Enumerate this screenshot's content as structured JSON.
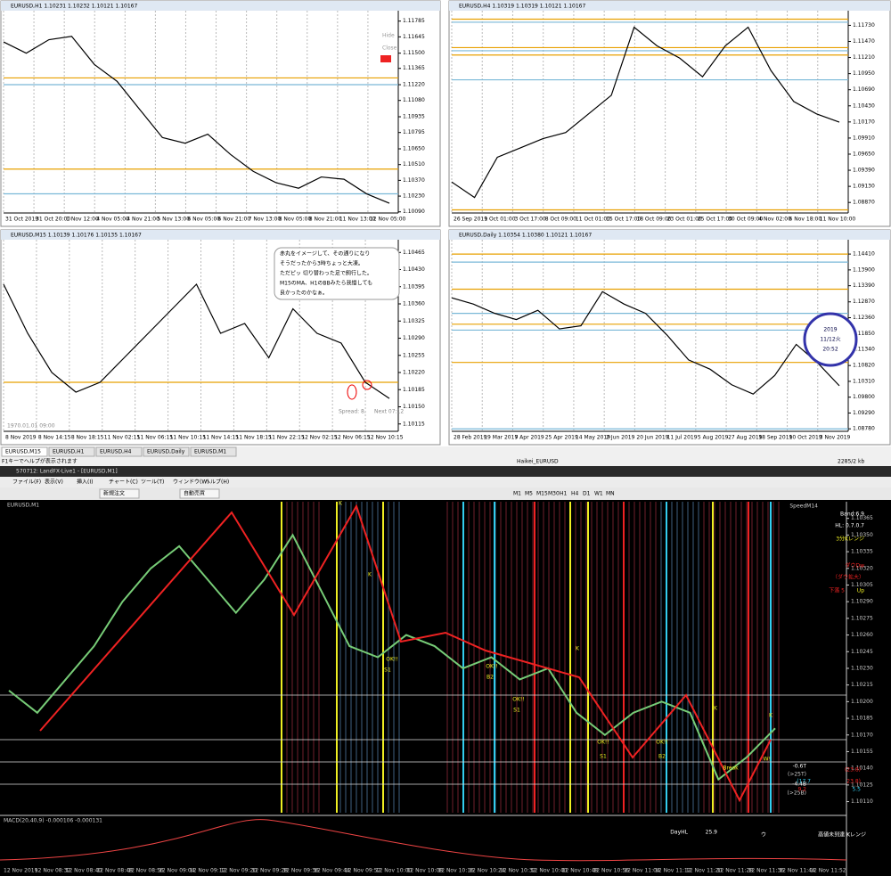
{
  "panels": [
    {
      "title": "EURUSD,H1 1.10231 1.10232 1.10121 1.10167",
      "ylim": [
        1.1008,
        1.1183
      ],
      "yticks": [
        {
          "value": 1.11785,
          "label": "1.11785"
        },
        {
          "value": 1.11645,
          "label": "1.11645"
        },
        {
          "value": 1.115,
          "label": "1.11500"
        },
        {
          "value": 1.11365,
          "label": "1.11365"
        },
        {
          "value": 1.1122,
          "label": "1.11220"
        },
        {
          "value": 1.1108,
          "label": "1.11080"
        },
        {
          "value": 1.10935,
          "label": "1.10935"
        },
        {
          "value": 1.10795,
          "label": "1.10795"
        },
        {
          "value": 1.1065,
          "label": "1.10650"
        },
        {
          "value": 1.1051,
          "label": "1.10510"
        },
        {
          "value": 1.1037,
          "label": "1.10370"
        },
        {
          "value": 1.1023,
          "label": "1.10230"
        },
        {
          "value": 1.1009,
          "label": "1.10090"
        }
      ],
      "xlabels": [
        "31 Oct 2019",
        "31 Oct 20:00",
        "1 Nov 12:00",
        "4 Nov 05:00",
        "4 Nov 21:00",
        "5 Nov 13:00",
        "6 Nov 05:00",
        "6 Nov 21:00",
        "7 Nov 13:00",
        "8 Nov 05:00",
        "8 Nov 21:00",
        "11 Nov 13:00",
        "12 Nov 05:00"
      ],
      "close": [
        1.116,
        1.115,
        1.1162,
        1.1165,
        1.114,
        1.1125,
        1.11,
        1.1075,
        1.107,
        1.1078,
        1.106,
        1.1045,
        1.1035,
        1.103,
        1.104,
        1.1038,
        1.1025,
        1.10167
      ],
      "levels": [
        1.1128,
        1.1122,
        1.1047,
        1.1025
      ],
      "side": [
        "Hide",
        "Close",
        "ON"
      ]
    },
    {
      "title": "EURUSD,H4 1.10319 1.10319 1.10121 1.10167",
      "ylim": [
        1.087,
        1.1188
      ],
      "yticks": [
        {
          "value": 1.1173,
          "label": "1.11730"
        },
        {
          "value": 1.1147,
          "label": "1.11470"
        },
        {
          "value": 1.1121,
          "label": "1.11210"
        },
        {
          "value": 1.1095,
          "label": "1.10950"
        },
        {
          "value": 1.1069,
          "label": "1.10690"
        },
        {
          "value": 1.1043,
          "label": "1.10430"
        },
        {
          "value": 1.1017,
          "label": "1.10170"
        },
        {
          "value": 1.0991,
          "label": "1.09910"
        },
        {
          "value": 1.0965,
          "label": "1.09650"
        },
        {
          "value": 1.0939,
          "label": "1.09390"
        },
        {
          "value": 1.0913,
          "label": "1.09130"
        },
        {
          "value": 1.0887,
          "label": "1.08870"
        }
      ],
      "xlabels": [
        "26 Sep 2019",
        "1 Oct 01:00",
        "3 Oct 17:00",
        "8 Oct 09:00",
        "11 Oct 01:00",
        "15 Oct 17:00",
        "18 Oct 09:00",
        "23 Oct 01:00",
        "25 Oct 17:00",
        "30 Oct 09:00",
        "4 Nov 02:00",
        "6 Nov 18:00",
        "11 Nov 10:00"
      ],
      "close": [
        1.092,
        1.0895,
        1.096,
        1.0975,
        1.099,
        1.1,
        1.103,
        1.106,
        1.117,
        1.114,
        1.112,
        1.109,
        1.114,
        1.117,
        1.11,
        1.105,
        1.103,
        1.10167
      ],
      "levels": [
        1.1183,
        1.1178,
        1.1137,
        1.1132,
        1.1125,
        1.1085,
        1.0875
      ],
      "side": []
    },
    {
      "title": "EURUSD,M15 1.10139 1.10176 1.10135 1.10167",
      "ylim": [
        1.101,
        1.1048
      ],
      "yticks": [
        {
          "value": 1.10465,
          "label": "1.10465"
        },
        {
          "value": 1.1043,
          "label": "1.10430"
        },
        {
          "value": 1.10395,
          "label": "1.10395"
        },
        {
          "value": 1.1036,
          "label": "1.10360"
        },
        {
          "value": 1.10325,
          "label": "1.10325"
        },
        {
          "value": 1.1029,
          "label": "1.10290"
        },
        {
          "value": 1.10255,
          "label": "1.10255"
        },
        {
          "value": 1.1022,
          "label": "1.10220"
        },
        {
          "value": 1.10185,
          "label": "1.10185"
        },
        {
          "value": 1.1015,
          "label": "1.10150"
        },
        {
          "value": 1.10115,
          "label": "1.10115"
        }
      ],
      "xlabels": [
        "8 Nov 2019",
        "8 Nov 14:15",
        "8 Nov 18:15",
        "11 Nov 02:15",
        "11 Nov 06:15",
        "11 Nov 10:15",
        "11 Nov 14:15",
        "11 Nov 18:15",
        "11 Nov 22:15",
        "12 Nov 02:15",
        "12 Nov 06:15",
        "12 Nov 10:15"
      ],
      "close": [
        1.104,
        1.103,
        1.1022,
        1.1018,
        1.102,
        1.1025,
        1.103,
        1.1035,
        1.104,
        1.103,
        1.1032,
        1.1025,
        1.1035,
        1.103,
        1.1028,
        1.102,
        1.10167
      ],
      "levels": [
        1.102
      ],
      "side": [
        "Hide",
        "Open"
      ]
    },
    {
      "title": "EURUSD,Daily 1.10354 1.10380 1.10121 1.10167",
      "ylim": [
        1.087,
        1.147
      ],
      "yticks": [
        {
          "value": 1.1441,
          "label": "1.14410"
        },
        {
          "value": 1.139,
          "label": "1.13900"
        },
        {
          "value": 1.1339,
          "label": "1.13390"
        },
        {
          "value": 1.1287,
          "label": "1.12870"
        },
        {
          "value": 1.1236,
          "label": "1.12360"
        },
        {
          "value": 1.1185,
          "label": "1.11850"
        },
        {
          "value": 1.1134,
          "label": "1.11340"
        },
        {
          "value": 1.1082,
          "label": "1.10820"
        },
        {
          "value": 1.1031,
          "label": "1.10310"
        },
        {
          "value": 1.098,
          "label": "1.09800"
        },
        {
          "value": 1.0929,
          "label": "1.09290"
        },
        {
          "value": 1.0878,
          "label": "1.08780"
        }
      ],
      "xlabels": [
        "28 Feb 2019",
        "19 Mar 2019",
        "7 Apr 2019",
        "25 Apr 2019",
        "14 May 2019",
        "2 Jun 2019",
        "20 Jun 2019",
        "11 Jul 2019",
        "5 Aug 2019",
        "27 Aug 2019",
        "18 Sep 2019",
        "10 Oct 2019",
        "3 Nov 2019"
      ],
      "close": [
        1.13,
        1.128,
        1.125,
        1.123,
        1.126,
        1.12,
        1.121,
        1.132,
        1.128,
        1.125,
        1.118,
        1.11,
        1.107,
        1.102,
        1.099,
        1.105,
        1.115,
        1.109,
        1.10167
      ],
      "levels": [
        1.1441,
        1.1415,
        1.1328,
        1.125,
        1.1215,
        1.1196,
        1.1092,
        1.0878
      ],
      "side": []
    }
  ],
  "m15_note": [
    "赤丸をイメージして、その通りになり",
    "そうだったから3時ちょっと大凍。",
    "ただピッ 切り替わった足で飼行した。",
    "M15のMA、H1のBBみたら我慢しても",
    "良かったのかなぁ。"
  ],
  "m15_extra": [
    "Spread: 8.",
    "Next 07:12",
    "1970.01.01 09:00"
  ],
  "clock": [
    "2019",
    "11/12火",
    "20:52"
  ],
  "tabs": [
    "EURUSD,M15",
    "EURUSD,H1",
    "EURUSD,H4",
    "EURUSD,Daily",
    "EURUSD,M1"
  ],
  "status": {
    "help": "F1キーでヘルプが表示されます",
    "profile": "Haikei_EURUSD",
    "traffic": "2285/2 kb"
  },
  "window_title": "570712: LandFX-Live1 - [EURUSD,M1]",
  "menu": [
    "ファイル(F)",
    "表示(V)",
    "挿入(I)",
    "チャート(C)",
    "ツール(T)",
    "ウィンドウ(W)",
    "ヘルプ(H)"
  ],
  "toolbar": [
    "新規注文",
    "自動売買"
  ],
  "periods": [
    "M1",
    "M5",
    "M15",
    "M30",
    "H1",
    "H4",
    "D1",
    "W1",
    "MN"
  ],
  "m1": {
    "title": "EURUSD,M1",
    "ylim": [
      1.101,
      1.1038
    ],
    "yticks": [
      {
        "value": 1.10365,
        "label": "1.10365"
      },
      {
        "value": 1.1035,
        "label": "1.10350"
      },
      {
        "value": 1.10335,
        "label": "1.10335"
      },
      {
        "value": 1.1032,
        "label": "1.10320"
      },
      {
        "value": 1.10305,
        "label": "1.10305"
      },
      {
        "value": 1.1029,
        "label": "1.10290"
      },
      {
        "value": 1.10275,
        "label": "1.10275"
      },
      {
        "value": 1.1026,
        "label": "1.10260"
      },
      {
        "value": 1.10245,
        "label": "1.10245"
      },
      {
        "value": 1.1023,
        "label": "1.10230"
      },
      {
        "value": 1.10215,
        "label": "1.10215"
      },
      {
        "value": 1.102,
        "label": "1.10200"
      },
      {
        "value": 1.10185,
        "label": "1.10185"
      },
      {
        "value": 1.1017,
        "label": "1.10170"
      },
      {
        "value": 1.10155,
        "label": "1.10155"
      },
      {
        "value": 1.1014,
        "label": "1.10140"
      },
      {
        "value": 1.10125,
        "label": "1.10125"
      },
      {
        "value": 1.1011,
        "label": "1.10110"
      }
    ],
    "xlabels": [
      "12 Nov 2019",
      "12 Nov 08:32",
      "12 Nov 08:40",
      "12 Nov 08:48",
      "12 Nov 08:56",
      "12 Nov 09:04",
      "12 Nov 09:12",
      "12 Nov 09:20",
      "12 Nov 09:28",
      "12 Nov 09:36",
      "12 Nov 09:44",
      "12 Nov 09:52",
      "12 Nov 10:00",
      "12 Nov 10:08",
      "12 Nov 10:16",
      "12 Nov 10:24",
      "12 Nov 10:32",
      "12 Nov 10:40",
      "12 Nov 10:48",
      "12 Nov 10:56",
      "12 Nov 11:04",
      "12 Nov 11:12",
      "12 Nov 11:20",
      "12 Nov 11:28",
      "12 Nov 11:36",
      "12 Nov 11:44",
      "12 Nov 11:52"
    ],
    "close": [
      1.1021,
      1.1019,
      1.1022,
      1.1025,
      1.1029,
      1.1032,
      1.1034,
      1.1031,
      1.1028,
      1.1031,
      1.1035,
      1.103,
      1.1025,
      1.1024,
      1.1026,
      1.1025,
      1.1023,
      1.1024,
      1.1022,
      1.1023,
      1.1019,
      1.1017,
      1.1019,
      1.102,
      1.1019,
      1.1013,
      1.1015,
      1.10176
    ],
    "annotations": [
      "K",
      "K",
      "OK!!",
      "S1",
      "OK!!",
      "B2",
      "OK!!",
      "S1",
      "K",
      "OK!!",
      "S1",
      "OK!!",
      "B2",
      "K",
      "K",
      "Break"
    ],
    "info": [
      "SpeedM14",
      "Band:6.9",
      "HL: 0.7.0.7",
      "3分Kレンジ",
      "ダウDw",
      "（ダウ拡大）",
      "下落 5",
      "Up",
      "W!",
      "-0.6T",
      "(>25T)",
      "-4.4B",
      "(>25B)",
      "(17.7",
      "23.8)",
      "(23.8)",
      "9.2",
      "5.5",
      "DayHL",
      "25.9",
      "ウ",
      "高値未到達 Kレンジ"
    ],
    "macd": "MACD(20,40,9) -0.000106 -0.000131"
  }
}
